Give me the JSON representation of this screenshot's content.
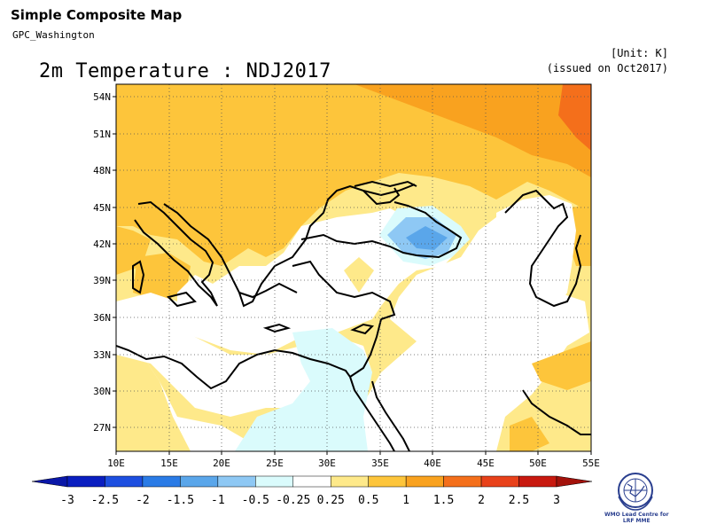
{
  "header": {
    "app_title": "Simple Composite Map",
    "source": "GPC_Washington",
    "unit": "[Unit: K]",
    "issued": "(issued on Oct2017)",
    "map_title": "2m Temperature : NDJ2017"
  },
  "map": {
    "lon_labels": [
      "10E",
      "15E",
      "20E",
      "25E",
      "30E",
      "35E",
      "40E",
      "45E",
      "50E",
      "55E"
    ],
    "lat_labels": [
      "54N",
      "51N",
      "48N",
      "45N",
      "42N",
      "39N",
      "36N",
      "33N",
      "30N",
      "27N"
    ],
    "lon_range": [
      10,
      55
    ],
    "lat_range": [
      25,
      55
    ],
    "grid": true,
    "gridline_style": "dotted",
    "shaded_regions": [
      {
        "category": "1 to 1.5",
        "color": "#f9a21f",
        "area": "northeast (Russia / north Kazakhstan)"
      },
      {
        "category": "1.5 to 2",
        "color": "#f46f1b",
        "area": "far northeast corner"
      },
      {
        "category": "0.5 to 1",
        "color": "#fdc53b",
        "area": "Europe, Balkans, north of Black Sea"
      },
      {
        "category": "0.25 to 0.5",
        "color": "#fee98a",
        "area": "southern Europe, Arabian peninsula, Iran"
      },
      {
        "category": "-0.25 to 0.25",
        "color": "#ffffff",
        "area": "Mediterranean, Turkey, Caspian"
      },
      {
        "category": "-0.5 to -0.25",
        "color": "#dafbfc",
        "area": "Egypt / Libya, Black Sea edge"
      },
      {
        "category": "-1 to -0.5",
        "color": "#8ec8f4",
        "area": "eastern Black Sea / Caucasus"
      },
      {
        "category": "-1.5 to -1",
        "color": "#5aa6ea",
        "area": "center of eastern Black Sea anomaly"
      }
    ]
  },
  "colorbar": {
    "labels": [
      "-3",
      "-2.5",
      "-2",
      "-1.5",
      "-1",
      "-0.5",
      "-0.25",
      "0.25",
      "0.5",
      "1",
      "1.5",
      "2",
      "2.5",
      "3"
    ],
    "colors": [
      "#0a1ec0",
      "#1d4fe0",
      "#2a7be6",
      "#5aa6ea",
      "#8ec8f4",
      "#dafbfc",
      "#ffffff",
      "#fee98a",
      "#fdc53b",
      "#f9a21f",
      "#f46f1b",
      "#e8411a",
      "#c8190f"
    ],
    "left_arrow_color": "#0a17a8",
    "right_arrow_color": "#a3120b"
  },
  "logo": {
    "line1": "WMO Lead Centre for",
    "line2": "LRF MME"
  }
}
